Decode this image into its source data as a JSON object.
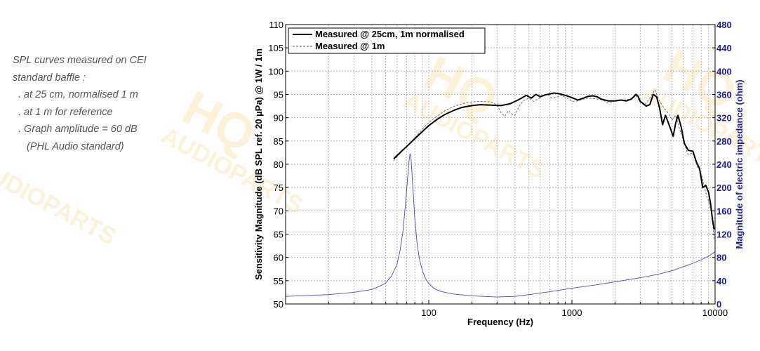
{
  "notes": {
    "lines": [
      "SPL curves measured on CEI",
      "standard baffle :",
      ". at 25 cm, normalised 1 m",
      ". at 1 m for reference",
      ". Graph amplitude = 60 dB",
      "(PHL Audio standard)"
    ]
  },
  "watermark": {
    "brand": "HQ",
    "sub": "AUDIOPARTS"
  },
  "colors": {
    "impedance": "#4a4ab8",
    "right_axis": "#1c1c99",
    "grid": "#b4b4b4",
    "watermark": "#f6c25a"
  },
  "chart_data": {
    "type": "line",
    "xlabel": "Frequency (Hz)",
    "ylabel": "Sensitivity Magnitude (dB SPL ref. 20 µPa) @ 1W / 1m",
    "y2label": "Magnitude of electric impedance (ohm)",
    "x_scale": "log",
    "xlim": [
      10,
      10000
    ],
    "ylim": [
      50,
      110
    ],
    "y2lim": [
      0,
      480
    ],
    "x_ticks": [
      100,
      1000,
      10000
    ],
    "x_tick_labels": [
      "100",
      "1000",
      "10000"
    ],
    "y_ticks": [
      50,
      55,
      60,
      65,
      70,
      75,
      80,
      85,
      90,
      95,
      100,
      105,
      110
    ],
    "y2_ticks": [
      0,
      40,
      80,
      120,
      160,
      200,
      240,
      280,
      320,
      360,
      400,
      440,
      480
    ],
    "grid": true,
    "legend_position": "top-left",
    "series": [
      {
        "name": "Measured @ 25cm, 1m normalised",
        "axis": "left",
        "style": "solid-thick",
        "color": "#000000",
        "x": [
          57,
          63,
          70,
          80,
          90,
          100,
          115,
          130,
          150,
          170,
          200,
          230,
          270,
          320,
          370,
          420,
          450,
          480,
          520,
          560,
          600,
          650,
          700,
          750,
          800,
          850,
          900,
          1000,
          1100,
          1200,
          1300,
          1400,
          1500,
          1600,
          1800,
          2000,
          2200,
          2400,
          2600,
          2800,
          2900,
          3000,
          3100,
          3300,
          3500,
          3700,
          3900,
          4100,
          4300,
          4500,
          4700,
          4900,
          5100,
          5300,
          5500,
          5800,
          6100,
          6500,
          7000,
          7400,
          7800,
          8200,
          8600,
          9000,
          9300,
          9600,
          9850
        ],
        "y": [
          81.2,
          82.5,
          83.8,
          85.5,
          87.0,
          88.3,
          89.7,
          90.7,
          91.6,
          92.2,
          92.6,
          92.8,
          92.7,
          92.6,
          93.0,
          93.8,
          94.3,
          94.8,
          94.2,
          95.0,
          94.5,
          94.9,
          95.1,
          95.3,
          95.2,
          95.0,
          94.8,
          94.3,
          93.8,
          94.2,
          94.6,
          94.7,
          94.5,
          94.0,
          93.6,
          93.6,
          93.8,
          93.6,
          94.0,
          95.0,
          94.6,
          93.5,
          93.2,
          92.5,
          92.8,
          95.0,
          94.5,
          92.0,
          88.5,
          90.5,
          89.0,
          87.5,
          86.0,
          88.8,
          90.5,
          88.0,
          84.5,
          83.0,
          82.8,
          80.5,
          79.0,
          75.0,
          75.5,
          74.0,
          71.5,
          68.0,
          66.0
        ]
      },
      {
        "name": "Measured @ 1m",
        "axis": "left",
        "style": "dashed",
        "color": "#555555",
        "x": [
          57,
          63,
          70,
          80,
          90,
          100,
          115,
          130,
          150,
          170,
          200,
          230,
          270,
          300,
          320,
          340,
          360,
          380,
          400,
          430,
          460,
          500,
          540,
          580,
          620,
          680,
          720,
          780,
          850,
          950,
          1000,
          1100,
          1200,
          1300,
          1450,
          1600,
          1800,
          2000,
          2300,
          2600,
          2800,
          3000,
          3200,
          3500,
          3800,
          4100,
          4400,
          4700,
          5000,
          5300,
          5600,
          6000,
          6500,
          7000,
          7500,
          8000,
          8500,
          9000,
          9500,
          9850
        ],
        "y": [
          80.8,
          82.3,
          83.8,
          85.7,
          87.5,
          89.0,
          90.4,
          91.5,
          92.4,
          93.0,
          93.4,
          93.5,
          93.4,
          92.8,
          91.0,
          90.3,
          91.5,
          90.8,
          90.5,
          92.6,
          93.7,
          94.2,
          93.5,
          94.0,
          94.6,
          95.0,
          94.2,
          94.4,
          94.8,
          94.0,
          93.5,
          93.6,
          94.0,
          94.2,
          94.1,
          93.9,
          93.2,
          93.6,
          93.8,
          94.0,
          94.8,
          93.3,
          92.7,
          94.2,
          96.0,
          93.5,
          92.0,
          91.0,
          89.5,
          90.5,
          88.0,
          85.0,
          82.0,
          82.5,
          79.5,
          78.0,
          74.5,
          72.0,
          69.0,
          64.0
        ]
      },
      {
        "name": "Impedance",
        "axis": "right",
        "style": "solid-thin",
        "color": "#4a4ab8",
        "x": [
          10,
          20,
          30,
          40,
          45,
          50,
          55,
          60,
          63,
          66,
          69,
          71,
          73,
          74,
          75,
          76,
          78,
          80,
          83,
          86,
          90,
          95,
          100,
          110,
          120,
          135,
          150,
          200,
          300,
          400,
          500,
          700,
          1000,
          1500,
          2000,
          3000,
          4000,
          5000,
          6000,
          7000,
          8000,
          9000,
          10000
        ],
        "y": [
          13,
          16,
          20,
          25,
          30,
          36,
          48,
          68,
          92,
          125,
          175,
          215,
          248,
          258,
          254,
          232,
          188,
          145,
          102,
          78,
          58,
          43,
          35,
          26,
          22,
          19,
          17,
          14,
          12,
          13,
          16,
          21,
          27,
          33,
          38,
          45,
          51,
          57,
          64,
          70,
          76,
          82,
          90
        ]
      }
    ]
  }
}
